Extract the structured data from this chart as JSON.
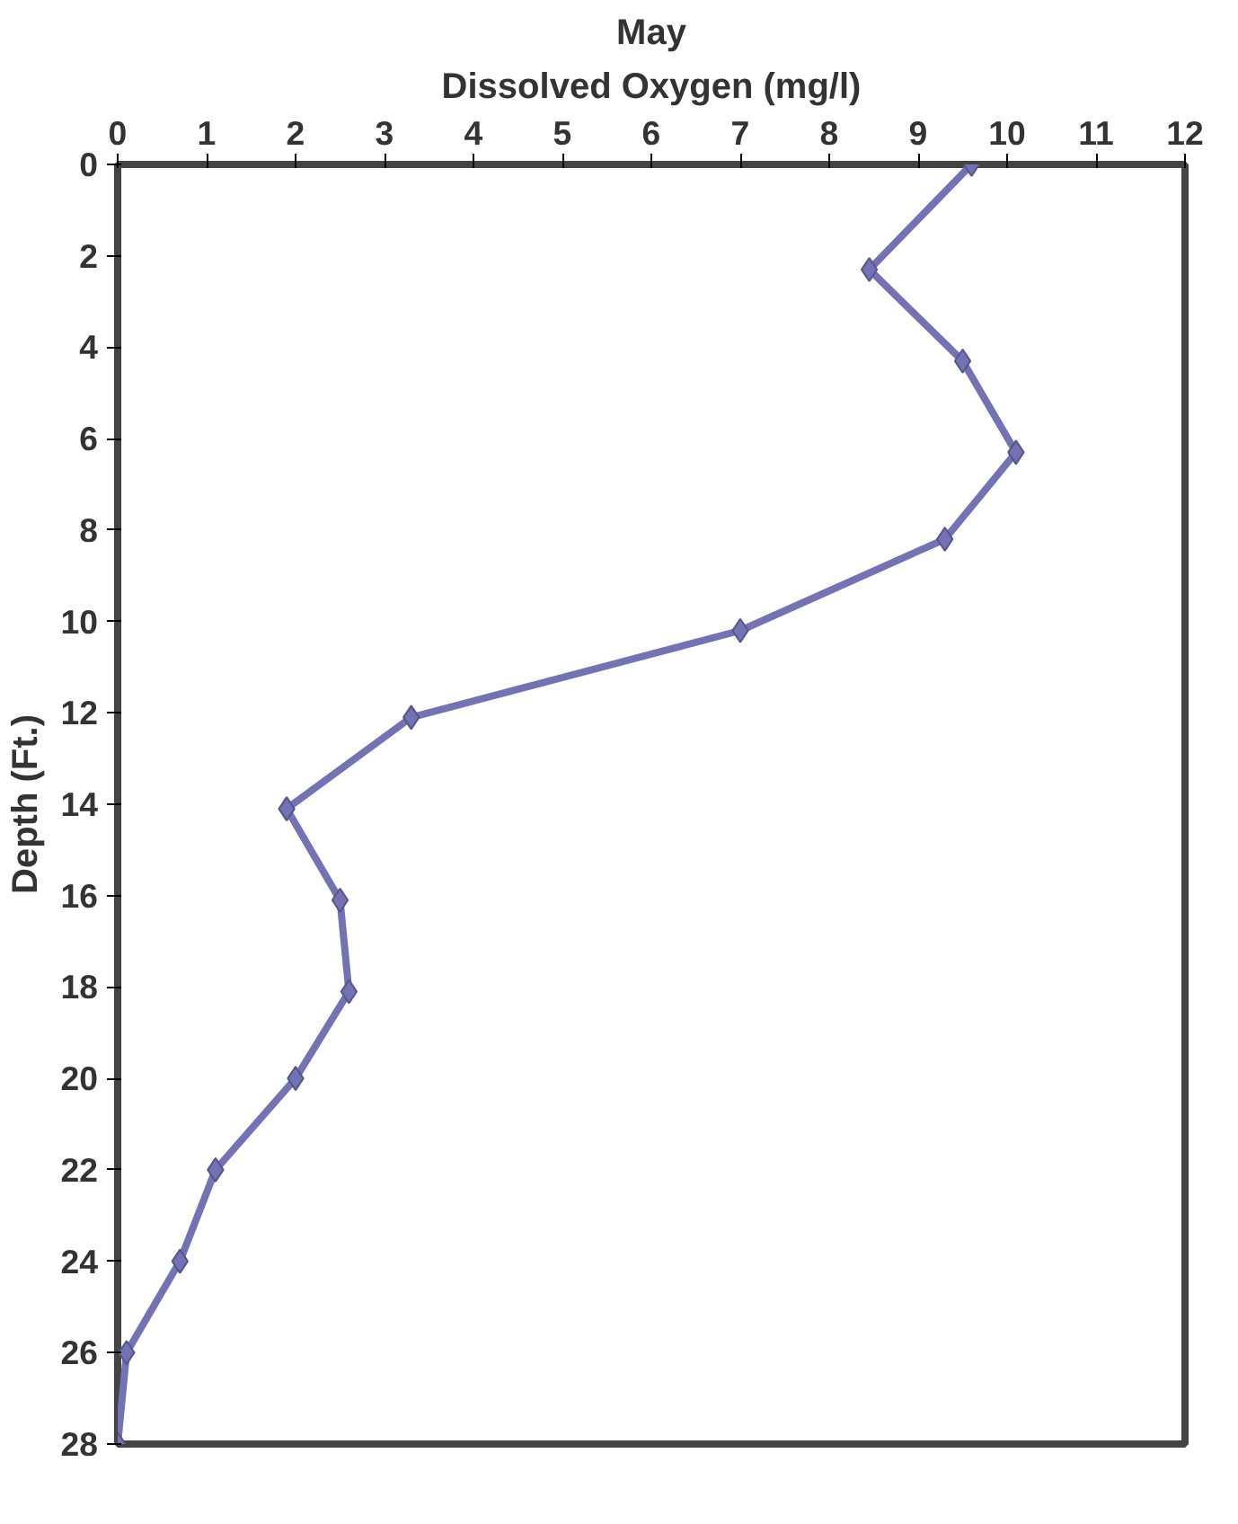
{
  "chart_data": {
    "type": "line",
    "title": "May",
    "xlabel": "Dissolved Oxygen (mg/l)",
    "ylabel": "Depth (Ft.)",
    "x": [
      9.6,
      8.45,
      9.5,
      10.1,
      9.3,
      7.0,
      3.3,
      1.9,
      2.5,
      2.6,
      2.0,
      1.1,
      0.7,
      0.1,
      0.0
    ],
    "series": [
      {
        "color": "#7272b4",
        "values": [
          0,
          2.3,
          4.3,
          6.3,
          8.2,
          10.2,
          12.1,
          14.1,
          16.1,
          18.1,
          20.0,
          22.0,
          24.0,
          26.0,
          28.0
        ]
      }
    ],
    "xlim": [
      0,
      12
    ],
    "xticks": [
      0,
      1,
      2,
      3,
      4,
      5,
      6,
      7,
      8,
      9,
      10,
      11,
      12
    ],
    "ylim": [
      28,
      0
    ],
    "yticks": [
      0,
      2,
      4,
      6,
      8,
      10,
      12,
      14,
      16,
      18,
      20,
      22,
      24,
      26,
      28
    ],
    "marker": "diamond",
    "line_style": "solid",
    "grid": false
  }
}
